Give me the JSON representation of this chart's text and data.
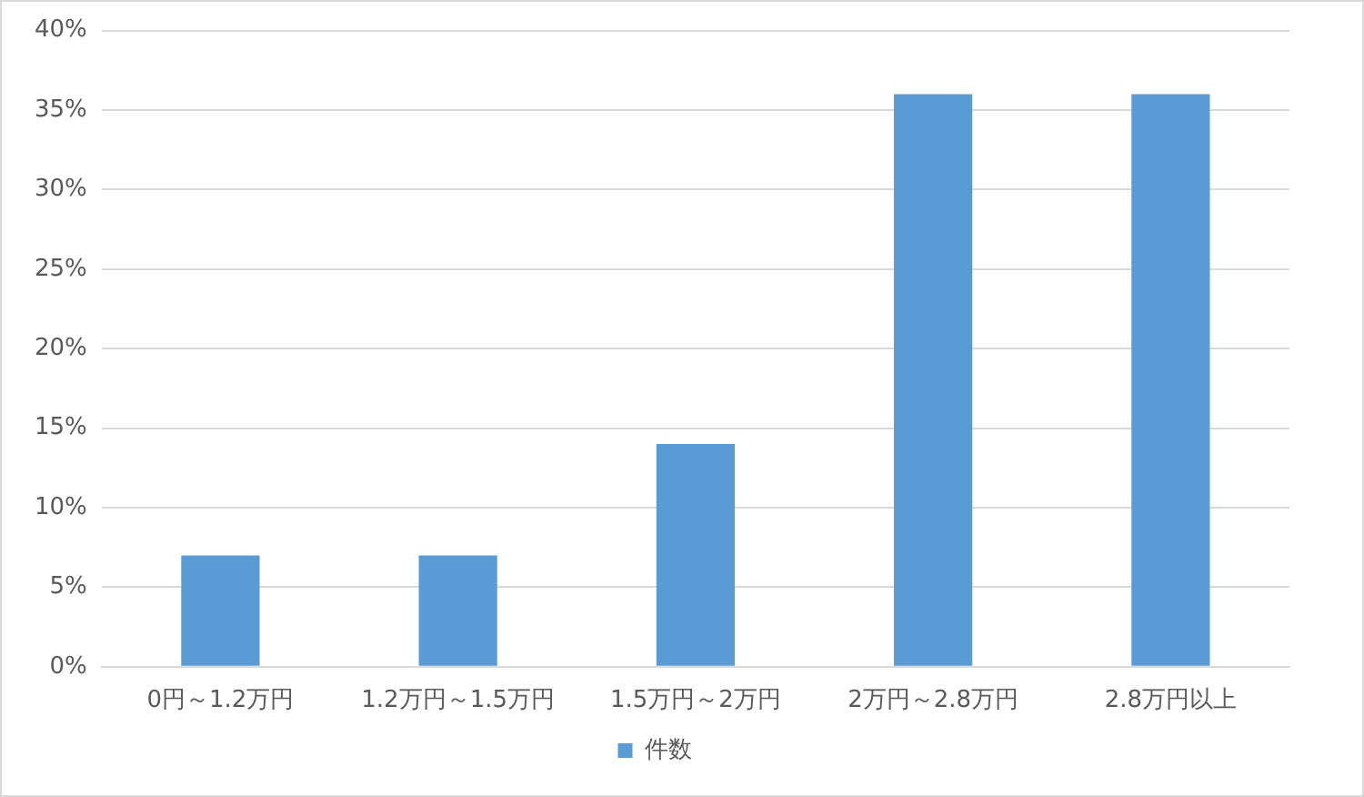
{
  "chart_data": {
    "type": "bar",
    "categories": [
      "0円～1.2万円",
      "1.2万円～1.5万円",
      "1.5万円～2万円",
      "2万円～2.8万円",
      "2.8万円以上"
    ],
    "series": [
      {
        "name": "件数",
        "color": "#5b9bd5",
        "values": [
          7,
          7,
          14,
          36,
          36
        ]
      }
    ],
    "ylim": [
      0,
      40
    ],
    "yticks": [
      {
        "value": 0,
        "label": "0%"
      },
      {
        "value": 5,
        "label": "5%"
      },
      {
        "value": 10,
        "label": "10%"
      },
      {
        "value": 15,
        "label": "15%"
      },
      {
        "value": 20,
        "label": "20%"
      },
      {
        "value": 25,
        "label": "25%"
      },
      {
        "value": 30,
        "label": "30%"
      },
      {
        "value": 35,
        "label": "35%"
      },
      {
        "value": 40,
        "label": "40%"
      }
    ],
    "grid": "y",
    "legend": "bottom"
  }
}
